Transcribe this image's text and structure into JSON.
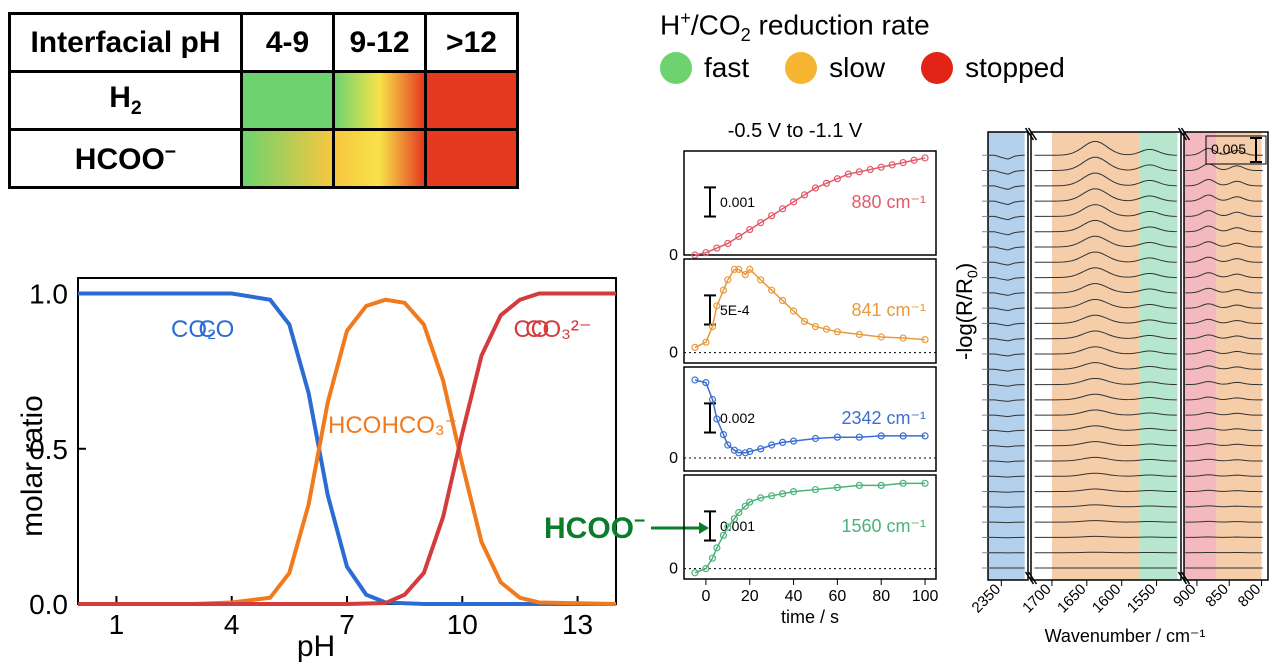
{
  "header_table": {
    "row_header": "Interfacial pH",
    "cols": [
      "4-9",
      "9-12",
      ">12"
    ],
    "rows": [
      "H₂",
      "HCOO⁻"
    ],
    "cells": {
      "H2": {
        "c0": {
          "gradient": [
            "#6ed36e",
            "#6ed36e"
          ]
        },
        "c1": {
          "gradient": [
            "#6ed36e",
            "#f7e24a",
            "#e53a1f"
          ]
        },
        "c2": {
          "gradient": [
            "#e53a1f",
            "#e53a1f"
          ]
        }
      },
      "HCOO": {
        "c0": {
          "gradient": [
            "#6ed36e",
            "#f7c73f"
          ]
        },
        "c1": {
          "gradient": [
            "#f7c73f",
            "#f7e24a",
            "#e53a1f"
          ]
        },
        "c2": {
          "gradient": [
            "#e53a1f",
            "#e53a1f"
          ]
        }
      }
    },
    "cell_border_width": 3
  },
  "legend": {
    "title": "H⁺/CO₂ reduction rate",
    "items": [
      {
        "label": "fast",
        "color": "#6ed36e"
      },
      {
        "label": "slow",
        "color": "#f5b531"
      },
      {
        "label": "stopped",
        "color": "#e22417"
      }
    ],
    "dot_radius": 16,
    "title_fontsize": 28
  },
  "speciation_chart": {
    "type": "line",
    "xlabel": "pH",
    "ylabel": "molar ratio",
    "xlim": [
      0,
      14
    ],
    "xticks": [
      1,
      4,
      7,
      10,
      13
    ],
    "ylim": [
      0,
      1.05
    ],
    "yticks": [
      0.0,
      0.5,
      1.0
    ],
    "ytick_labels": [
      "0.0",
      "0.5",
      "1.0"
    ],
    "axis_fontsize": 30,
    "tick_fontsize": 28,
    "line_width": 4,
    "frame_width": 2,
    "frame_color": "#000000",
    "background": "#ffffff",
    "series": {
      "CO2": {
        "label": "CO₂",
        "color": "#2a6bd4",
        "label_pos": [
          3.6,
          0.86
        ],
        "points": [
          [
            0,
            1
          ],
          [
            1,
            1
          ],
          [
            2,
            1
          ],
          [
            3,
            1
          ],
          [
            4,
            1
          ],
          [
            5,
            0.98
          ],
          [
            5.5,
            0.9
          ],
          [
            6,
            0.68
          ],
          [
            6.5,
            0.35
          ],
          [
            7,
            0.12
          ],
          [
            7.5,
            0.03
          ],
          [
            8,
            0.005
          ],
          [
            9,
            0
          ],
          [
            14,
            0
          ]
        ]
      },
      "HCO3": {
        "label": "HCO₃⁻",
        "color": "#f07a1e",
        "label_pos": [
          7.2,
          0.55
        ],
        "points": [
          [
            0,
            0
          ],
          [
            3,
            0
          ],
          [
            4,
            0.005
          ],
          [
            5,
            0.02
          ],
          [
            5.5,
            0.1
          ],
          [
            6,
            0.32
          ],
          [
            6.5,
            0.65
          ],
          [
            7,
            0.88
          ],
          [
            7.5,
            0.96
          ],
          [
            8,
            0.98
          ],
          [
            8.5,
            0.97
          ],
          [
            9,
            0.9
          ],
          [
            9.5,
            0.72
          ],
          [
            10,
            0.45
          ],
          [
            10.5,
            0.2
          ],
          [
            11,
            0.07
          ],
          [
            11.5,
            0.02
          ],
          [
            12,
            0.005
          ],
          [
            14,
            0
          ]
        ]
      },
      "CO3": {
        "label": "CO₃²⁻",
        "color": "#d33b3d",
        "label_pos": [
          11.8,
          0.86
        ],
        "points": [
          [
            0,
            0
          ],
          [
            7,
            0
          ],
          [
            8,
            0.003
          ],
          [
            8.5,
            0.03
          ],
          [
            9,
            0.1
          ],
          [
            9.5,
            0.28
          ],
          [
            10,
            0.55
          ],
          [
            10.5,
            0.8
          ],
          [
            11,
            0.93
          ],
          [
            11.5,
            0.98
          ],
          [
            12,
            1
          ],
          [
            14,
            1
          ]
        ]
      }
    }
  },
  "kinetic_traces": {
    "title": "-0.5 V to -1.1 V",
    "xlabel": "time / s",
    "xlim": [
      -10,
      105
    ],
    "xticks": [
      0,
      20,
      40,
      60,
      80,
      100
    ],
    "tick_fontsize": 18,
    "panel_height_ratio": 1,
    "panels": [
      {
        "peak": "880 cm⁻¹",
        "color": "#e25b6a",
        "scalebar": "0.001",
        "ylim": [
          0,
          0.0045
        ],
        "zero_line": 0,
        "points": [
          [
            -5,
            0
          ],
          [
            0,
            0.0001
          ],
          [
            5,
            0.0003
          ],
          [
            10,
            0.0005
          ],
          [
            15,
            0.0008
          ],
          [
            20,
            0.0011
          ],
          [
            25,
            0.0014
          ],
          [
            30,
            0.0017
          ],
          [
            35,
            0.002
          ],
          [
            40,
            0.0023
          ],
          [
            45,
            0.0026
          ],
          [
            50,
            0.0029
          ],
          [
            55,
            0.0031
          ],
          [
            60,
            0.0033
          ],
          [
            65,
            0.0035
          ],
          [
            70,
            0.0036
          ],
          [
            75,
            0.0037
          ],
          [
            80,
            0.0038
          ],
          [
            85,
            0.0039
          ],
          [
            90,
            0.004
          ],
          [
            95,
            0.0041
          ],
          [
            100,
            0.0042
          ]
        ]
      },
      {
        "peak": "841 cm⁻¹",
        "color": "#e89a3c",
        "scalebar": "5E-4",
        "ylim": [
          -0.0002,
          0.0018
        ],
        "zero_line": 0,
        "points": [
          [
            -5,
            0.0001
          ],
          [
            0,
            0.0002
          ],
          [
            3,
            0.0005
          ],
          [
            5,
            0.0009
          ],
          [
            8,
            0.0012
          ],
          [
            10,
            0.0014
          ],
          [
            13,
            0.0016
          ],
          [
            15,
            0.0016
          ],
          [
            18,
            0.0015
          ],
          [
            20,
            0.0016
          ],
          [
            25,
            0.0014
          ],
          [
            30,
            0.0012
          ],
          [
            35,
            0.001
          ],
          [
            40,
            0.0008
          ],
          [
            45,
            0.0006
          ],
          [
            50,
            0.0005
          ],
          [
            55,
            0.00045
          ],
          [
            60,
            0.0004
          ],
          [
            70,
            0.00035
          ],
          [
            80,
            0.0003
          ],
          [
            90,
            0.00028
          ],
          [
            100,
            0.00025
          ]
        ]
      },
      {
        "peak": "2342 cm⁻¹",
        "color": "#3b6fd1",
        "scalebar": "0.002",
        "ylim": [
          -0.001,
          0.007
        ],
        "zero_line": 0,
        "points": [
          [
            -5,
            0.006
          ],
          [
            0,
            0.0058
          ],
          [
            3,
            0.0045
          ],
          [
            5,
            0.003
          ],
          [
            8,
            0.0018
          ],
          [
            10,
            0.001
          ],
          [
            13,
            0.0006
          ],
          [
            15,
            0.0004
          ],
          [
            18,
            0.0004
          ],
          [
            20,
            0.0005
          ],
          [
            25,
            0.0007
          ],
          [
            30,
            0.001
          ],
          [
            35,
            0.0012
          ],
          [
            40,
            0.0013
          ],
          [
            50,
            0.0015
          ],
          [
            60,
            0.0016
          ],
          [
            70,
            0.0016
          ],
          [
            80,
            0.0017
          ],
          [
            90,
            0.0017
          ],
          [
            100,
            0.0017
          ]
        ]
      },
      {
        "peak": "1560 cm⁻¹",
        "color": "#4bb27a",
        "scalebar": "0.001",
        "ylim": [
          -0.0005,
          0.0045
        ],
        "zero_line": 0,
        "points": [
          [
            -5,
            -0.0002
          ],
          [
            0,
            0
          ],
          [
            3,
            0.0005
          ],
          [
            5,
            0.001
          ],
          [
            8,
            0.0016
          ],
          [
            10,
            0.002
          ],
          [
            13,
            0.0024
          ],
          [
            15,
            0.0027
          ],
          [
            18,
            0.003
          ],
          [
            20,
            0.0032
          ],
          [
            25,
            0.0034
          ],
          [
            30,
            0.0035
          ],
          [
            35,
            0.0036
          ],
          [
            40,
            0.0037
          ],
          [
            50,
            0.0038
          ],
          [
            60,
            0.0039
          ],
          [
            70,
            0.004
          ],
          [
            80,
            0.004
          ],
          [
            90,
            0.0041
          ],
          [
            100,
            0.0041
          ]
        ]
      }
    ]
  },
  "ir_stack": {
    "type": "stacked-spectra",
    "ylabel": "-log(R/R₀)",
    "xlabel": "Wavenumber / cm⁻¹",
    "scalebar": "0.005",
    "xticks": [
      2350,
      1700,
      1650,
      1600,
      1550,
      900,
      850,
      800
    ],
    "xtick_rotation": -45,
    "n_traces": 28,
    "line_color": "#333333",
    "line_width": 1,
    "bands": [
      {
        "color": "#8bb7e3",
        "range": [
          2370,
          2315
        ]
      },
      {
        "color": "#f0b27a",
        "range": [
          1700,
          1575
        ]
      },
      {
        "color": "#8fd9b2",
        "range": [
          1575,
          1520
        ]
      },
      {
        "color": "#ec939c",
        "range": [
          920,
          870
        ]
      },
      {
        "color": "#f0b27a",
        "range": [
          870,
          800
        ]
      }
    ],
    "segments": [
      {
        "domain": [
          2370,
          2310
        ]
      },
      {
        "domain": [
          1730,
          1515
        ]
      },
      {
        "domain": [
          920,
          790
        ]
      }
    ]
  },
  "hcoo_arrow": {
    "text": "HCOO⁻",
    "color": "#0a7d2c"
  }
}
